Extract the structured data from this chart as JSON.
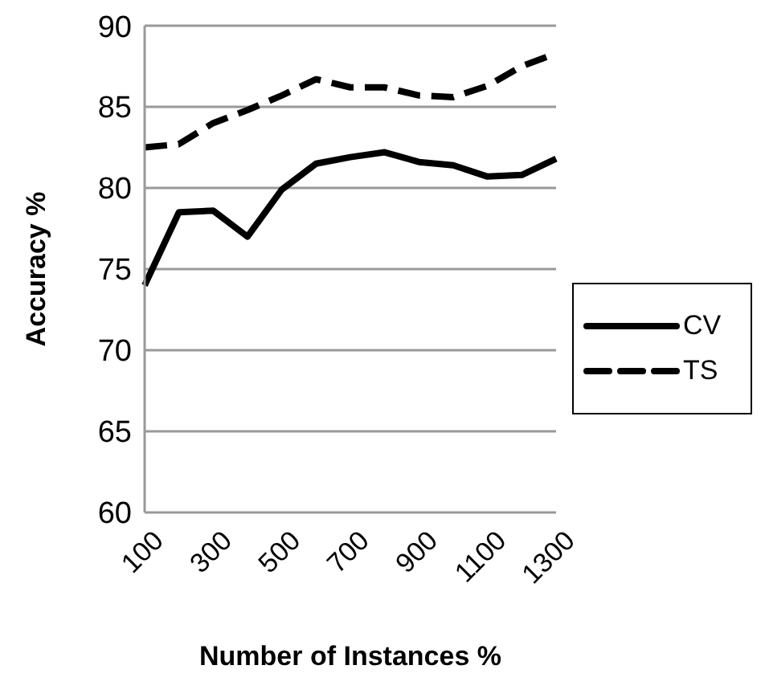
{
  "chart_data": {
    "type": "line",
    "xlabel": "Number of Instances %",
    "ylabel": "Accuracy %",
    "categories": [
      "100",
      null,
      "300",
      null,
      "500",
      null,
      "700",
      null,
      "900",
      null,
      "1100",
      null,
      "1300"
    ],
    "series": [
      {
        "name": "CV",
        "color": "#000000",
        "line_style": "solid",
        "values": [
          74,
          78.5,
          78.6,
          77,
          79.9,
          81.5,
          81.9,
          82.2,
          81.6,
          81.4,
          80.7,
          80.8,
          81.8
        ]
      },
      {
        "name": "TS",
        "color": "#000000",
        "line_style": "dashed",
        "values": [
          82.5,
          82.7,
          84,
          84.8,
          85.7,
          86.7,
          86.2,
          86.2,
          85.7,
          85.6,
          86.3,
          87.5,
          88.3
        ]
      }
    ],
    "ylim": [
      60,
      90
    ],
    "yticks": [
      60,
      65,
      70,
      75,
      80,
      85,
      90
    ],
    "grid": "y",
    "legend": "right",
    "marker": "none"
  }
}
